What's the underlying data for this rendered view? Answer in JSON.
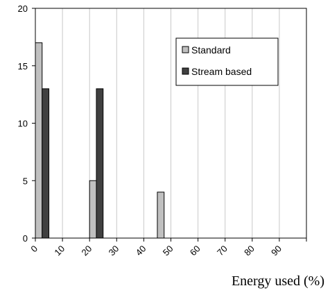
{
  "chart_data": {
    "type": "bar",
    "title": "",
    "xlabel": "Energy used (%)",
    "ylabel": "",
    "x_ticks": [
      "0",
      "10",
      "20",
      "30",
      "40",
      "50",
      "60",
      "70",
      "80",
      "90"
    ],
    "xlim": [
      0,
      100
    ],
    "ylim": [
      0,
      20
    ],
    "y_ticks": [
      "0",
      "5",
      "10",
      "15",
      "20"
    ],
    "grid": "vertical",
    "legend_position": "top-right",
    "series": [
      {
        "name": "Standard",
        "color": "#c0c0c0",
        "points": [
          {
            "x": 0,
            "y": 17
          },
          {
            "x": 20,
            "y": 5
          },
          {
            "x": 45,
            "y": 4
          }
        ]
      },
      {
        "name": "Stream based",
        "color": "#404040",
        "points": [
          {
            "x": 0,
            "y": 13
          },
          {
            "x": 20,
            "y": 13
          }
        ]
      }
    ]
  }
}
